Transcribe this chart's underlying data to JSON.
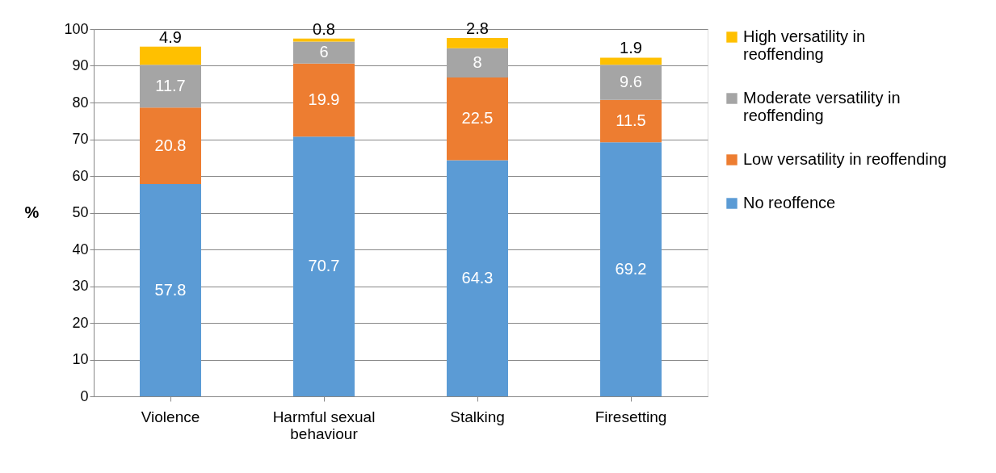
{
  "chart_data": {
    "type": "bar",
    "stacked": true,
    "ylabel": "%",
    "categories": [
      "Violence",
      "Harmful sexual behaviour",
      "Stalking",
      "Firesetting"
    ],
    "series": [
      {
        "name": "No reoffence",
        "color": "#5b9bd5",
        "values": [
          57.8,
          70.7,
          64.3,
          69.2
        ]
      },
      {
        "name": "Low versatility in reoffending",
        "color": "#ed7d31",
        "values": [
          20.8,
          19.9,
          22.5,
          11.5
        ]
      },
      {
        "name": "Moderate versatility in reoffending",
        "color": "#a5a5a5",
        "values": [
          11.7,
          6,
          8,
          9.6
        ]
      },
      {
        "name": "High versatility in reoffending",
        "color": "#ffc000",
        "values": [
          4.9,
          0.8,
          2.8,
          1.9
        ]
      }
    ],
    "ylim": [
      0,
      100
    ],
    "yticks": [
      0,
      10,
      20,
      30,
      40,
      50,
      60,
      70,
      80,
      90,
      100
    ],
    "grid": "y",
    "legend": "right",
    "data_labels": true
  }
}
